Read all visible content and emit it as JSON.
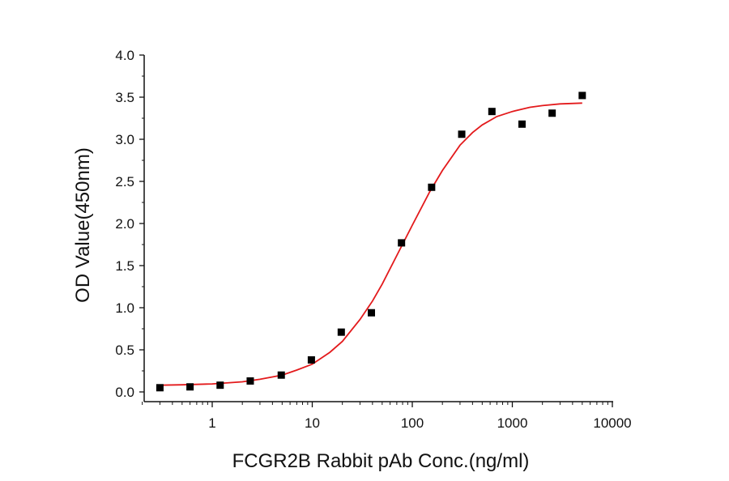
{
  "chart_data": {
    "type": "scatter",
    "title": "",
    "xlabel": "FCGR2B Rabbit pAb Conc.(ng/ml)",
    "ylabel": "OD Value(450nm)",
    "x_scale": "log",
    "xlim": [
      0.2,
      10000
    ],
    "ylim": [
      0,
      4.0
    ],
    "x_ticks": [
      1,
      10,
      100,
      1000,
      10000
    ],
    "x_tick_labels": [
      "1",
      "10",
      "100",
      "1000",
      "10000"
    ],
    "y_ticks": [
      0.0,
      0.5,
      1.0,
      1.5,
      2.0,
      2.5,
      3.0,
      3.5,
      4.0
    ],
    "y_tick_labels": [
      "0.0",
      "0.5",
      "1.0",
      "1.5",
      "2.0",
      "2.5",
      "3.0",
      "3.5",
      "4.0"
    ],
    "grid": false,
    "legend": "none",
    "series": [
      {
        "kind": "points",
        "marker": "square",
        "color": "#000000",
        "x": [
          0.3,
          0.6,
          1.2,
          2.4,
          4.9,
          9.8,
          19.5,
          39,
          78,
          156,
          312,
          625,
          1250,
          2500,
          5000
        ],
        "y": [
          0.05,
          0.06,
          0.08,
          0.13,
          0.2,
          0.38,
          0.71,
          0.94,
          1.77,
          2.43,
          3.06,
          3.33,
          3.18,
          3.31,
          3.52
        ]
      },
      {
        "kind": "fit",
        "color": "#e31a1c",
        "x": [
          0.3,
          0.5,
          1,
          2,
          3,
          5,
          7,
          10,
          15,
          20,
          30,
          40,
          50,
          70,
          100,
          150,
          200,
          300,
          400,
          500,
          700,
          1000,
          1500,
          2000,
          3000,
          5000
        ],
        "y": [
          0.08,
          0.085,
          0.095,
          0.12,
          0.15,
          0.2,
          0.26,
          0.33,
          0.47,
          0.6,
          0.86,
          1.08,
          1.28,
          1.62,
          1.98,
          2.38,
          2.63,
          2.93,
          3.08,
          3.17,
          3.27,
          3.33,
          3.38,
          3.4,
          3.42,
          3.43
        ]
      }
    ]
  }
}
